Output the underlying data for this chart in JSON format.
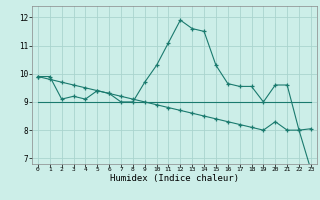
{
  "xlabel": "Humidex (Indice chaleur)",
  "bg_color": "#cceee8",
  "line_color": "#1a7a6e",
  "grid_color": "#aad4ce",
  "x_values": [
    0,
    1,
    2,
    3,
    4,
    5,
    6,
    7,
    8,
    9,
    10,
    11,
    12,
    13,
    14,
    15,
    16,
    17,
    18,
    19,
    20,
    21,
    22,
    23
  ],
  "line1": [
    9.9,
    9.9,
    9.1,
    9.2,
    9.1,
    9.4,
    9.3,
    9.0,
    9.0,
    9.7,
    10.3,
    11.1,
    11.9,
    11.6,
    11.5,
    10.3,
    9.65,
    9.55,
    9.55,
    9.0,
    9.6,
    9.6,
    8.0,
    8.05
  ],
  "line2": [
    9.0,
    9.0,
    9.0,
    9.0,
    9.0,
    9.0,
    9.0,
    9.0,
    9.0,
    9.0,
    9.0,
    9.0,
    9.0,
    9.0,
    9.0,
    9.0,
    9.0,
    9.0,
    9.0,
    9.0,
    9.0,
    9.0,
    9.0,
    9.0
  ],
  "line3": [
    9.9,
    9.8,
    9.7,
    9.6,
    9.5,
    9.4,
    9.3,
    9.2,
    9.1,
    9.0,
    8.9,
    8.8,
    8.7,
    8.6,
    8.5,
    8.4,
    8.3,
    8.2,
    8.1,
    8.0,
    8.3,
    8.0,
    8.0,
    6.6
  ],
  "ylim": [
    6.8,
    12.4
  ],
  "yticks": [
    7,
    8,
    9,
    10,
    11,
    12
  ],
  "xlim": [
    -0.5,
    23.5
  ]
}
